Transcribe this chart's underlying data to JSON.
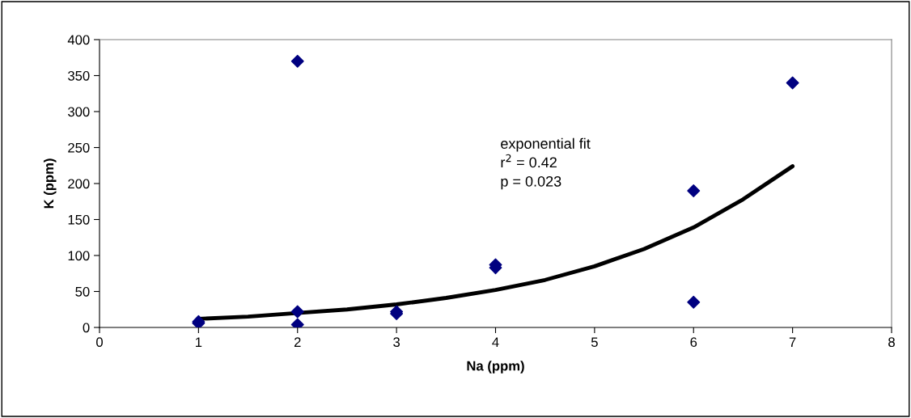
{
  "chart_data": {
    "type": "scatter",
    "xlabel": "Na (ppm)",
    "ylabel": "K (ppm)",
    "xlim": [
      0,
      8
    ],
    "xticks": [
      0,
      1,
      2,
      3,
      4,
      5,
      6,
      7,
      8
    ],
    "ylim": [
      0,
      400
    ],
    "yticks": [
      0,
      50,
      100,
      150,
      200,
      250,
      300,
      350,
      400
    ],
    "grid": false,
    "legend": false,
    "series": [
      {
        "color": "#000080",
        "marker": "diamond",
        "x": [
          1,
          1,
          2,
          2,
          2,
          3,
          3,
          4,
          4,
          6,
          6,
          7
        ],
        "values": [
          8,
          6,
          370,
          22,
          4,
          22,
          19,
          87,
          83,
          190,
          35,
          340
        ]
      },
      {
        "type": "line",
        "color": "#000000",
        "marker": "none",
        "line_style": "solid",
        "x": [
          1,
          1.5,
          2,
          2.5,
          3,
          3.5,
          4,
          4.5,
          5,
          5.5,
          6,
          6.5,
          7
        ],
        "values": [
          12,
          15,
          20,
          25,
          32,
          41,
          52,
          66,
          85,
          109,
          139,
          178,
          224
        ]
      }
    ],
    "annotations": [
      "exponential fit\nr$^{2}$ = 0.42\np = 0.023"
    ]
  }
}
